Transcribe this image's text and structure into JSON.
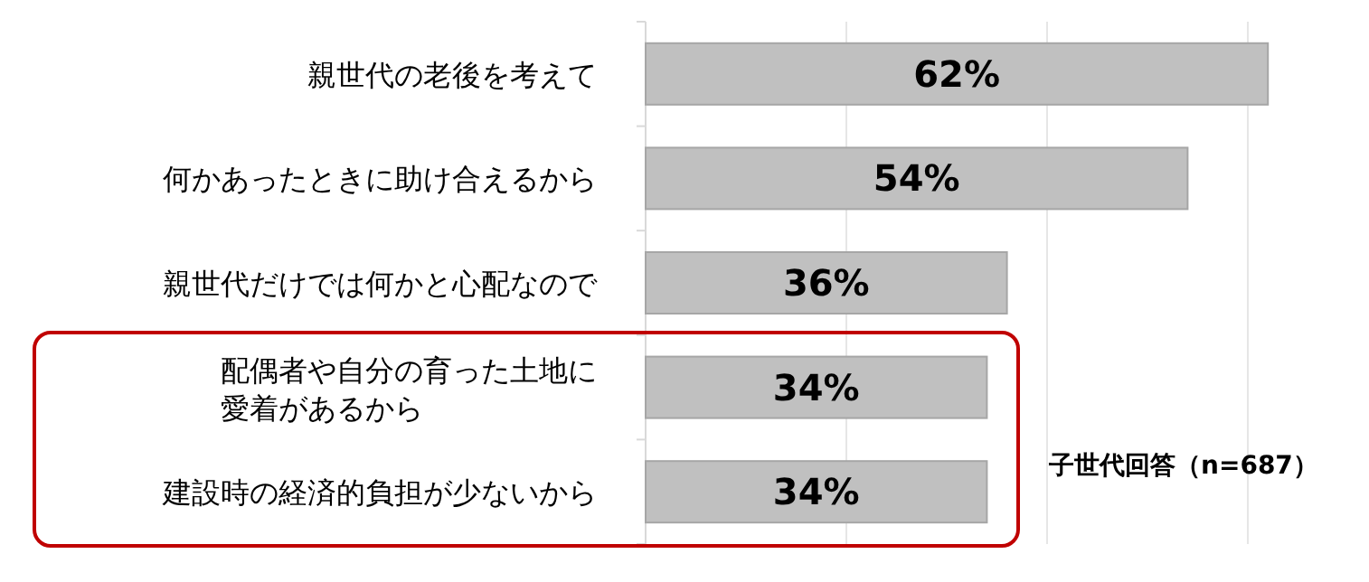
{
  "chart_data": {
    "type": "bar",
    "orientation": "horizontal",
    "categories": [
      "親世代の老後を考えて",
      "何かあったときに助け合えるから",
      "親世代だけでは何かと心配なので",
      "配偶者や自分の育った土地に愛着があるから",
      "建設時の経済的負担が少ないから"
    ],
    "values": [
      62,
      54,
      36,
      34,
      34
    ],
    "color": "#c0c0c0",
    "value_labels": [
      "62%",
      "54%",
      "36%",
      "34%",
      "34%"
    ],
    "xticks": [
      {
        "value": 20,
        "label": null
      },
      {
        "value": 40,
        "label": null
      },
      {
        "value": 60,
        "label": null
      }
    ],
    "grid": "x",
    "tick_labels": "y",
    "annotations": [
      "子世代回答（n=687）"
    ]
  }
}
